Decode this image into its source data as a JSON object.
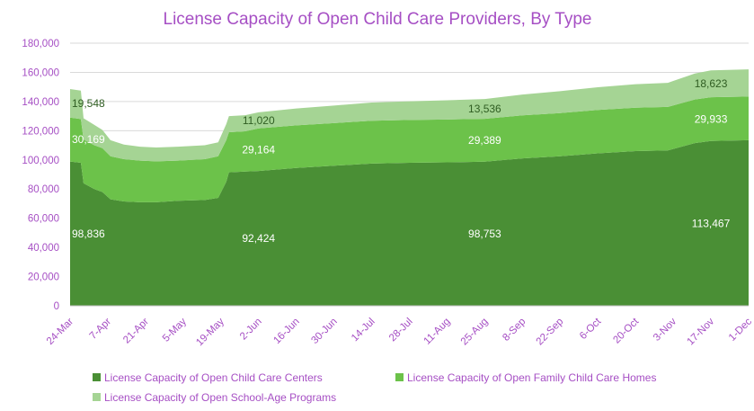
{
  "chart_data": {
    "type": "area",
    "stacked": true,
    "title": "License Capacity of Open Child Care Providers, By Type",
    "xlabel": "",
    "ylabel": "",
    "ylim": [
      0,
      180000
    ],
    "yticks": [
      "0",
      "20,000",
      "40,000",
      "60,000",
      "80,000",
      "100,000",
      "120,000",
      "140,000",
      "160,000",
      "180,000"
    ],
    "ytick_values": [
      0,
      20000,
      40000,
      60000,
      80000,
      100000,
      120000,
      140000,
      160000,
      180000
    ],
    "x_labels": [
      "24-Mar",
      "7-Apr",
      "21-Apr",
      "5-May",
      "19-May",
      "2-Jun",
      "16-Jun",
      "30-Jun",
      "14-Jul",
      "28-Jul",
      "11-Aug",
      "25-Aug",
      "8-Sep",
      "22-Sep",
      "6-Oct",
      "20-Oct",
      "3-Nov",
      "17-Nov",
      "1-Dec"
    ],
    "x_day_offsets": [
      0,
      14,
      28,
      42,
      56,
      70,
      84,
      98,
      112,
      126,
      140,
      154,
      168,
      182,
      196,
      210,
      224,
      238,
      252
    ],
    "gridlines": true,
    "legend_position": "bottom",
    "series": [
      {
        "name": "License Capacity of Open Child Care Centers",
        "color": "#4a8f35",
        "points": [
          [
            0,
            98836
          ],
          [
            4,
            98000
          ],
          [
            5,
            84000
          ],
          [
            9,
            80000
          ],
          [
            12,
            78000
          ],
          [
            15,
            73000
          ],
          [
            20,
            71500
          ],
          [
            26,
            71000
          ],
          [
            32,
            71000
          ],
          [
            40,
            72000
          ],
          [
            50,
            72500
          ],
          [
            55,
            74000
          ],
          [
            58,
            85000
          ],
          [
            59,
            91500
          ],
          [
            65,
            92000
          ],
          [
            70,
            92424
          ],
          [
            84,
            94500
          ],
          [
            98,
            96000
          ],
          [
            112,
            97500
          ],
          [
            126,
            98000
          ],
          [
            140,
            98300
          ],
          [
            154,
            98753
          ],
          [
            168,
            101000
          ],
          [
            182,
            102500
          ],
          [
            196,
            104500
          ],
          [
            210,
            106000
          ],
          [
            222,
            106500
          ],
          [
            224,
            107500
          ],
          [
            232,
            111500
          ],
          [
            238,
            113000
          ],
          [
            252,
            113467
          ]
        ]
      },
      {
        "name": "License Capacity of Open Family Child Care Homes",
        "color": "#6cc24a",
        "points": [
          [
            0,
            30169
          ],
          [
            4,
            30000
          ],
          [
            5,
            30000
          ],
          [
            9,
            30000
          ],
          [
            12,
            30000
          ],
          [
            15,
            29500
          ],
          [
            20,
            29000
          ],
          [
            26,
            28500
          ],
          [
            32,
            28000
          ],
          [
            40,
            27500
          ],
          [
            50,
            28000
          ],
          [
            55,
            28500
          ],
          [
            58,
            28500
          ],
          [
            59,
            27500
          ],
          [
            65,
            27600
          ],
          [
            70,
            29164
          ],
          [
            84,
            29200
          ],
          [
            98,
            29250
          ],
          [
            112,
            29300
          ],
          [
            126,
            29350
          ],
          [
            140,
            29380
          ],
          [
            154,
            29389
          ],
          [
            168,
            29500
          ],
          [
            182,
            29600
          ],
          [
            196,
            29700
          ],
          [
            210,
            29800
          ],
          [
            222,
            29800
          ],
          [
            224,
            29800
          ],
          [
            232,
            29900
          ],
          [
            238,
            29930
          ],
          [
            252,
            29933
          ]
        ]
      },
      {
        "name": "License Capacity of Open School-Age Programs",
        "color": "#a5d494",
        "points": [
          [
            0,
            19548
          ],
          [
            4,
            19500
          ],
          [
            5,
            14500
          ],
          [
            9,
            14000
          ],
          [
            12,
            12500
          ],
          [
            15,
            11000
          ],
          [
            20,
            10000
          ],
          [
            26,
            9500
          ],
          [
            32,
            9500
          ],
          [
            40,
            9500
          ],
          [
            50,
            9500
          ],
          [
            55,
            9500
          ],
          [
            58,
            11000
          ],
          [
            59,
            11000
          ],
          [
            65,
            11000
          ],
          [
            70,
            11020
          ],
          [
            84,
            11500
          ],
          [
            98,
            12000
          ],
          [
            112,
            12500
          ],
          [
            126,
            12800
          ],
          [
            140,
            13200
          ],
          [
            154,
            13536
          ],
          [
            168,
            14300
          ],
          [
            182,
            15000
          ],
          [
            196,
            15600
          ],
          [
            210,
            16100
          ],
          [
            222,
            16500
          ],
          [
            224,
            16800
          ],
          [
            232,
            17800
          ],
          [
            238,
            18400
          ],
          [
            252,
            18623
          ]
        ]
      }
    ],
    "data_labels": [
      {
        "x": 0,
        "text": "19,548",
        "series": 2,
        "color": "#2f5d22"
      },
      {
        "x": 0,
        "text": "30,169",
        "series": 1,
        "color": "#ffffff"
      },
      {
        "x": 0,
        "text": "98,836",
        "series": 0,
        "color": "#ffffff"
      },
      {
        "x": 70,
        "text": "11,020",
        "series": 2,
        "color": "#2f5d22"
      },
      {
        "x": 70,
        "text": "29,164",
        "series": 1,
        "color": "#ffffff"
      },
      {
        "x": 70,
        "text": "92,424",
        "series": 0,
        "color": "#ffffff"
      },
      {
        "x": 154,
        "text": "13,536",
        "series": 2,
        "color": "#2f5d22"
      },
      {
        "x": 154,
        "text": "29,389",
        "series": 1,
        "color": "#ffffff"
      },
      {
        "x": 154,
        "text": "98,753",
        "series": 0,
        "color": "#ffffff"
      },
      {
        "x": 238,
        "text": "18,623",
        "series": 2,
        "color": "#2f5d22"
      },
      {
        "x": 238,
        "text": "29,933",
        "series": 1,
        "color": "#ffffff"
      },
      {
        "x": 238,
        "text": "113,467",
        "series": 0,
        "color": "#ffffff"
      }
    ]
  }
}
